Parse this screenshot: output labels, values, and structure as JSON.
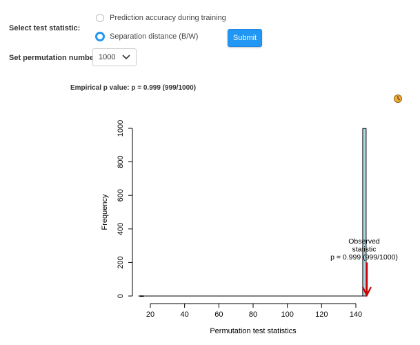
{
  "form": {
    "test_statistic_label": "Select test statistic:",
    "options": [
      {
        "label": "Prediction accuracy during training",
        "selected": false
      },
      {
        "label": "Separation distance (B/W)",
        "selected": true
      }
    ],
    "submit_label": "Submit",
    "permutation_label": "Set permutation numbers:",
    "permutation_value": "1000"
  },
  "result": {
    "p_value_text": "Empirical p value: p = 0.999 (999/1000)"
  },
  "icons": {
    "loading": "busy-indicator-icon",
    "chevron": "chevron-down-icon"
  },
  "colors": {
    "accent": "#2196f3",
    "bar_fill": "#add8e6",
    "arrow": "#cc0000"
  },
  "chart_data": {
    "type": "histogram",
    "xlabel": "Permutation test statistics",
    "ylabel": "Frequency",
    "xlim": [
      10,
      150
    ],
    "ylim": [
      0,
      1000
    ],
    "x_ticks": [
      "20",
      "40",
      "60",
      "80",
      "100",
      "120",
      "140"
    ],
    "y_ticks": [
      "0",
      "200",
      "400",
      "600",
      "800",
      "1000"
    ],
    "bins": [
      {
        "x0": 144,
        "x1": 146,
        "count": 999
      },
      {
        "x0": 14,
        "x1": 16,
        "count": 1
      }
    ],
    "observed": {
      "value": 145,
      "arrow_top_frequency": 200,
      "annotation": [
        "Observed",
        "statistic",
        "p = 0.999 (999/1000)"
      ]
    }
  }
}
